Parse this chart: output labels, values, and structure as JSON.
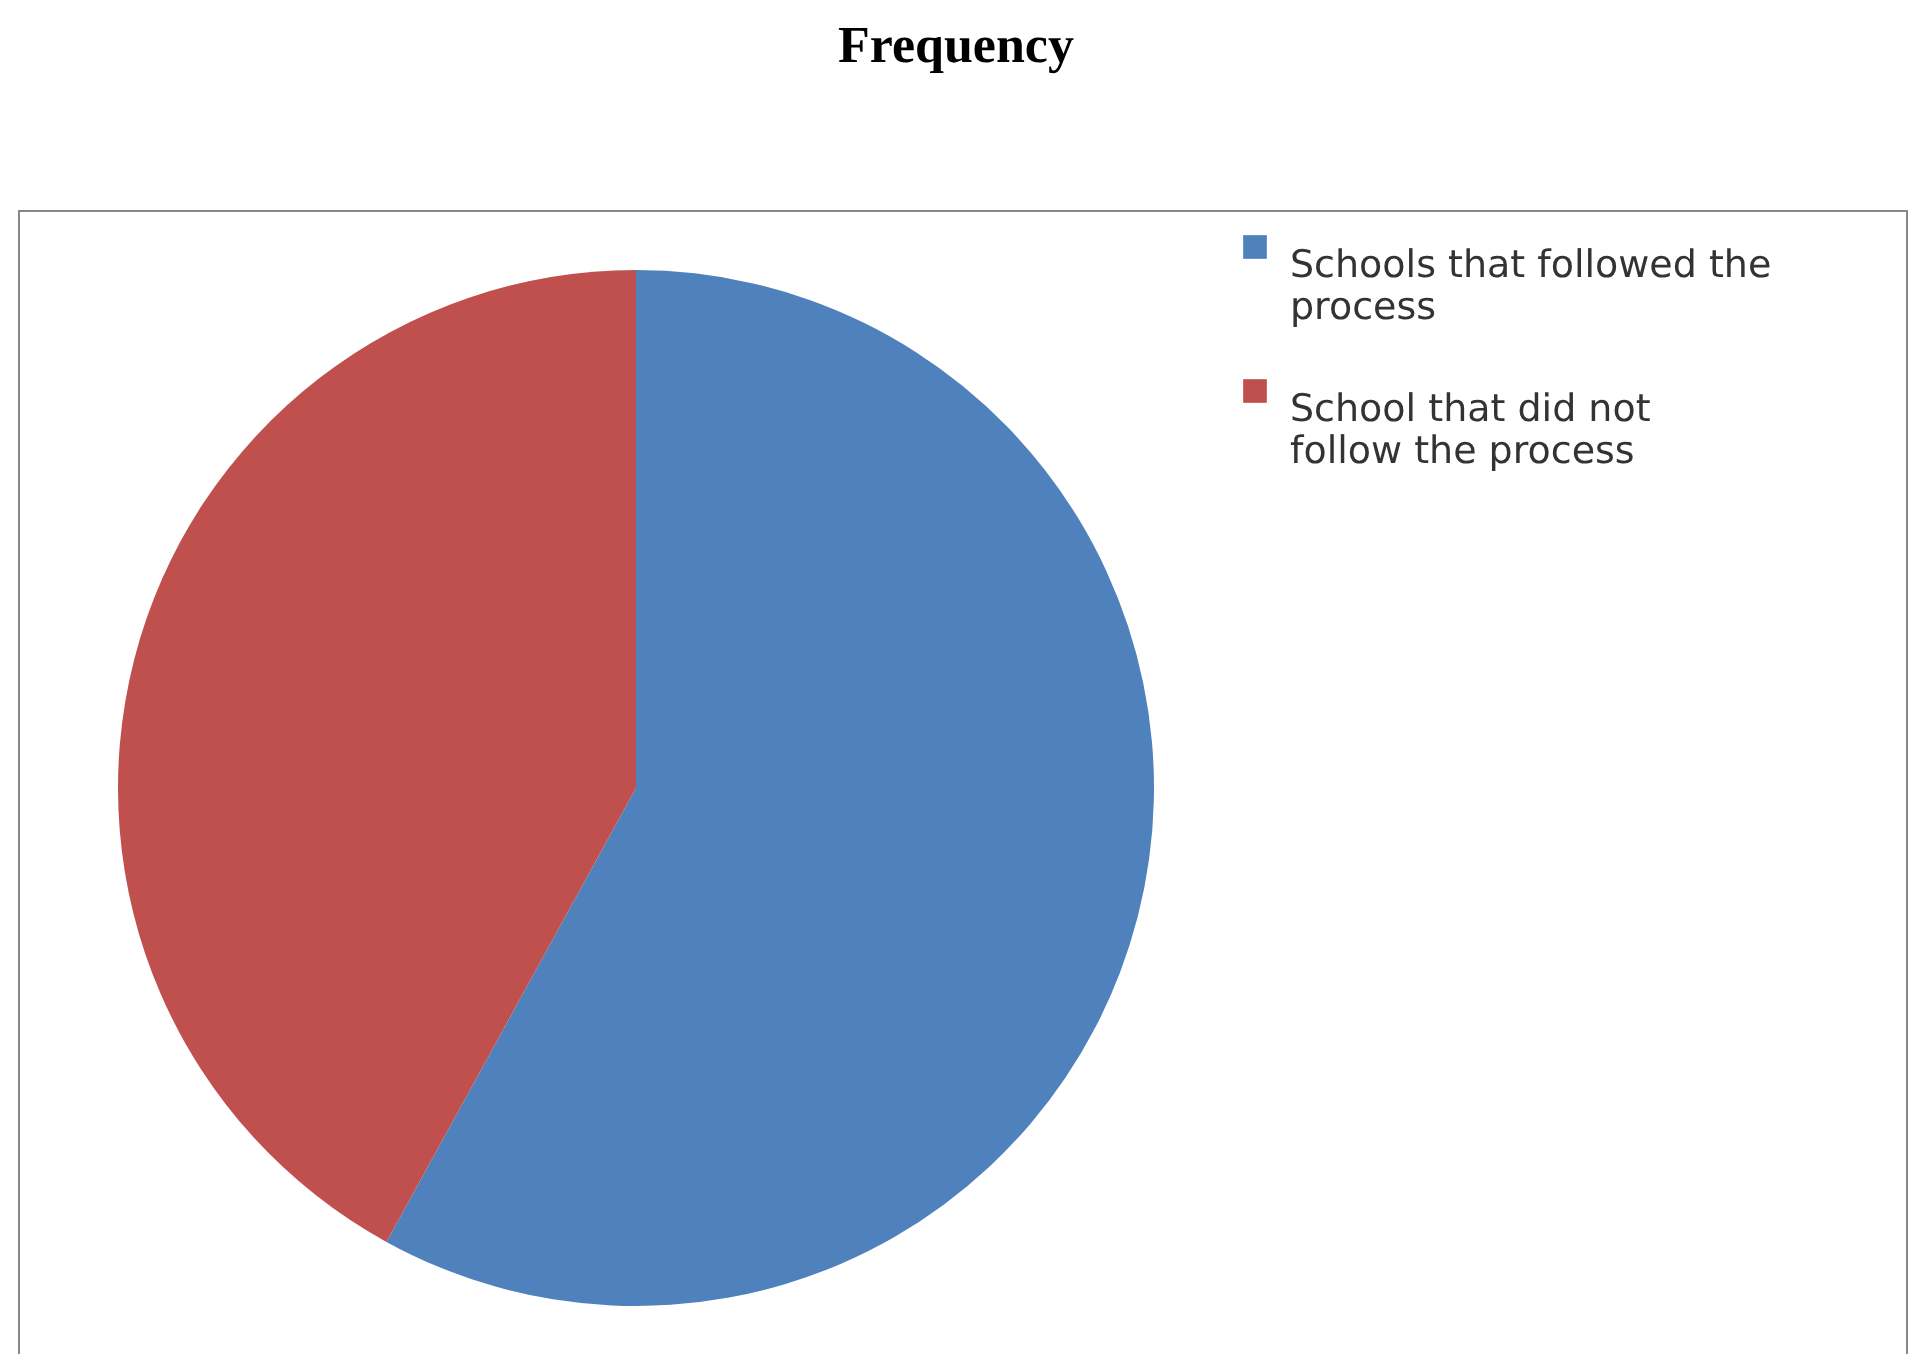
{
  "chart_data": {
    "type": "pie",
    "title": "Frequency",
    "categories": [
      "Schools that followed the process",
      "School that did not  follow the  process"
    ],
    "values": [
      58,
      42
    ],
    "colors": [
      "#4f81bd",
      "#c0504d"
    ],
    "legend": "right"
  }
}
